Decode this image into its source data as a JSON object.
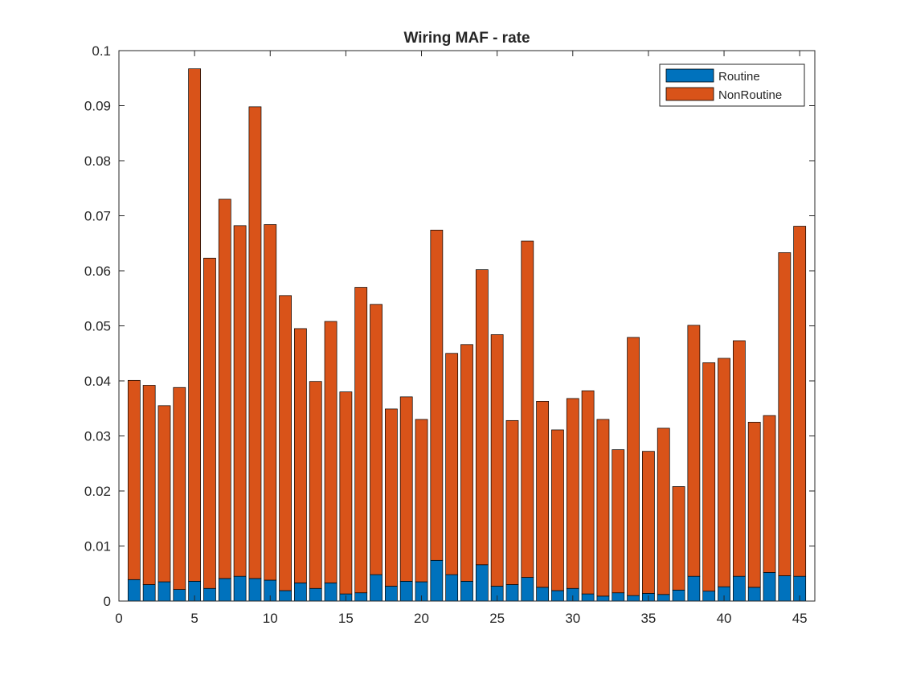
{
  "chart_data": {
    "type": "bar",
    "stacked": true,
    "title": "Wiring MAF - rate",
    "xlabel": "",
    "ylabel": "",
    "xlim": [
      0,
      46
    ],
    "ylim": [
      0,
      0.1
    ],
    "x": [
      1,
      2,
      3,
      4,
      5,
      6,
      7,
      8,
      9,
      10,
      11,
      12,
      13,
      14,
      15,
      16,
      17,
      18,
      19,
      20,
      21,
      22,
      23,
      24,
      25,
      26,
      27,
      28,
      29,
      30,
      31,
      32,
      33,
      34,
      35,
      36,
      37,
      38,
      39,
      40,
      41,
      42,
      43,
      44,
      45
    ],
    "x_ticks": [
      0,
      5,
      10,
      15,
      20,
      25,
      30,
      35,
      40,
      45
    ],
    "y_ticks": [
      0,
      0.01,
      0.02,
      0.03,
      0.04,
      0.05,
      0.06,
      0.07,
      0.08,
      0.09,
      0.1
    ],
    "x_tick_labels": [
      "0",
      "5",
      "10",
      "15",
      "20",
      "25",
      "30",
      "35",
      "40",
      "45"
    ],
    "y_tick_labels": [
      "0",
      "0.01",
      "0.02",
      "0.03",
      "0.04",
      "0.05",
      "0.06",
      "0.07",
      "0.08",
      "0.09",
      "0.1"
    ],
    "grid": false,
    "legend_position": "top-right",
    "series": [
      {
        "name": "Routine",
        "color": "#0072BD",
        "values": [
          0.0039,
          0.003,
          0.0035,
          0.0021,
          0.0036,
          0.0023,
          0.0041,
          0.0045,
          0.0041,
          0.0038,
          0.0019,
          0.0033,
          0.0023,
          0.0033,
          0.0013,
          0.0015,
          0.0048,
          0.0027,
          0.0036,
          0.0035,
          0.0074,
          0.0048,
          0.0036,
          0.0066,
          0.0027,
          0.003,
          0.0043,
          0.0025,
          0.0019,
          0.0023,
          0.0013,
          0.0009,
          0.0015,
          0.001,
          0.0014,
          0.0012,
          0.002,
          0.0045,
          0.0018,
          0.0026,
          0.0045,
          0.0025,
          0.0052,
          0.0046,
          0.0045
        ]
      },
      {
        "name": "NonRoutine",
        "color": "#D95319",
        "values": [
          0.0362,
          0.0362,
          0.032,
          0.0367,
          0.0931,
          0.06,
          0.0689,
          0.0637,
          0.0857,
          0.0646,
          0.0536,
          0.0462,
          0.0376,
          0.0475,
          0.0367,
          0.0555,
          0.0491,
          0.0322,
          0.0335,
          0.0295,
          0.06,
          0.0402,
          0.043,
          0.0536,
          0.0457,
          0.0298,
          0.0611,
          0.0338,
          0.0292,
          0.0345,
          0.0369,
          0.0321,
          0.026,
          0.0469,
          0.0258,
          0.0302,
          0.0188,
          0.0456,
          0.0415,
          0.0415,
          0.0428,
          0.03,
          0.0285,
          0.0587,
          0.0636
        ]
      }
    ]
  }
}
